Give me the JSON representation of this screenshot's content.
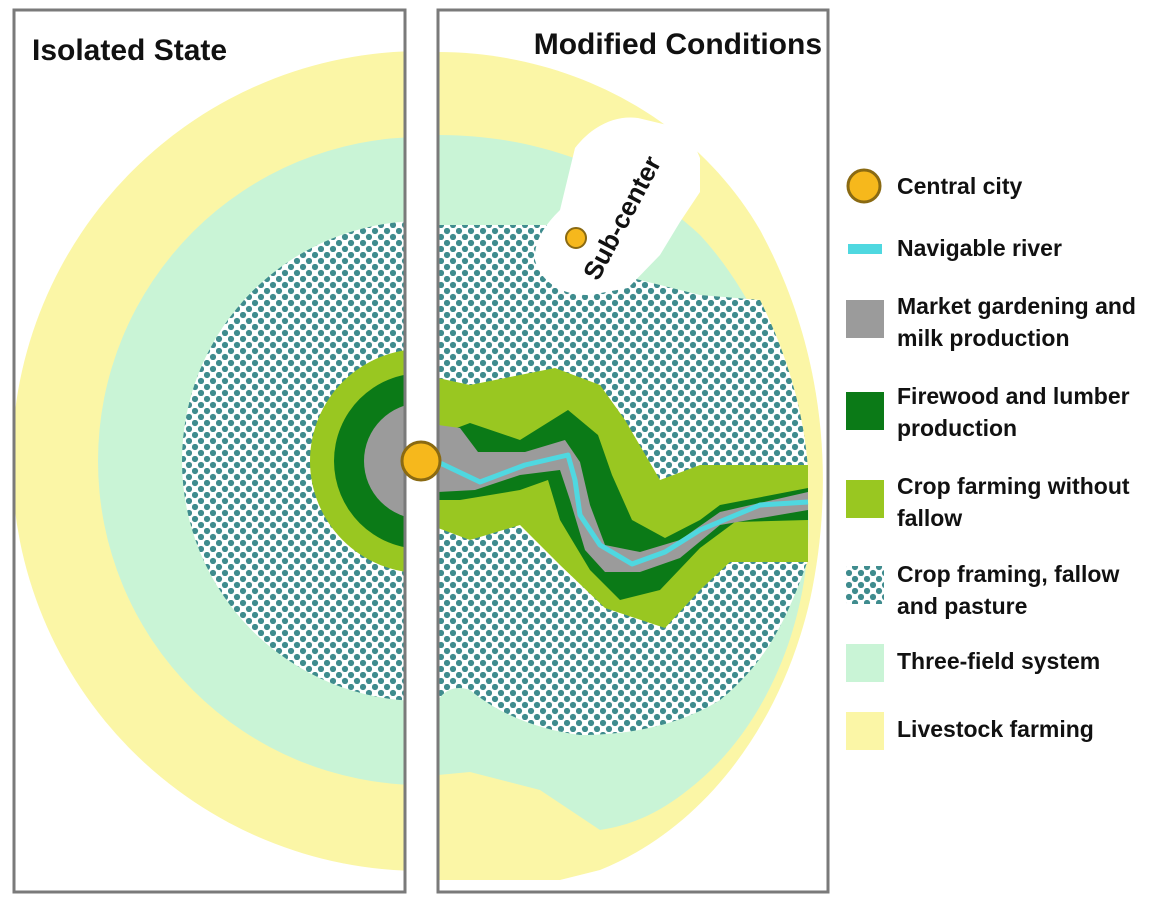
{
  "titles": {
    "left": "Isolated State",
    "right": "Modified Conditions"
  },
  "subcenter_label": "Sub-center",
  "colors": {
    "central_city": "#f6b81c",
    "river": "#4fd8e0",
    "market_gardening": "#9b9b9b",
    "firewood": "#0b7a17",
    "crop_no_fallow": "#99c721",
    "crop_fallow_dots": "#3f8c8e",
    "three_field": "#c9f4d6",
    "livestock": "#fbf6a6",
    "frame": "#7a7a7a"
  },
  "legend": [
    {
      "key": "central-city",
      "lines": [
        "Central city"
      ]
    },
    {
      "key": "navigable-river",
      "lines": [
        "Navigable river"
      ]
    },
    {
      "key": "market-gardening",
      "lines": [
        "Market gardening and",
        "milk production"
      ]
    },
    {
      "key": "firewood-lumber",
      "lines": [
        "Firewood and lumber",
        "production"
      ]
    },
    {
      "key": "crop-no-fallow",
      "lines": [
        "Crop farming without",
        "fallow"
      ]
    },
    {
      "key": "crop-fallow-pasture",
      "lines": [
        "Crop framing, fallow",
        "and pasture"
      ]
    },
    {
      "key": "three-field",
      "lines": [
        "Three-field system"
      ]
    },
    {
      "key": "livestock",
      "lines": [
        "Livestock farming"
      ]
    }
  ]
}
